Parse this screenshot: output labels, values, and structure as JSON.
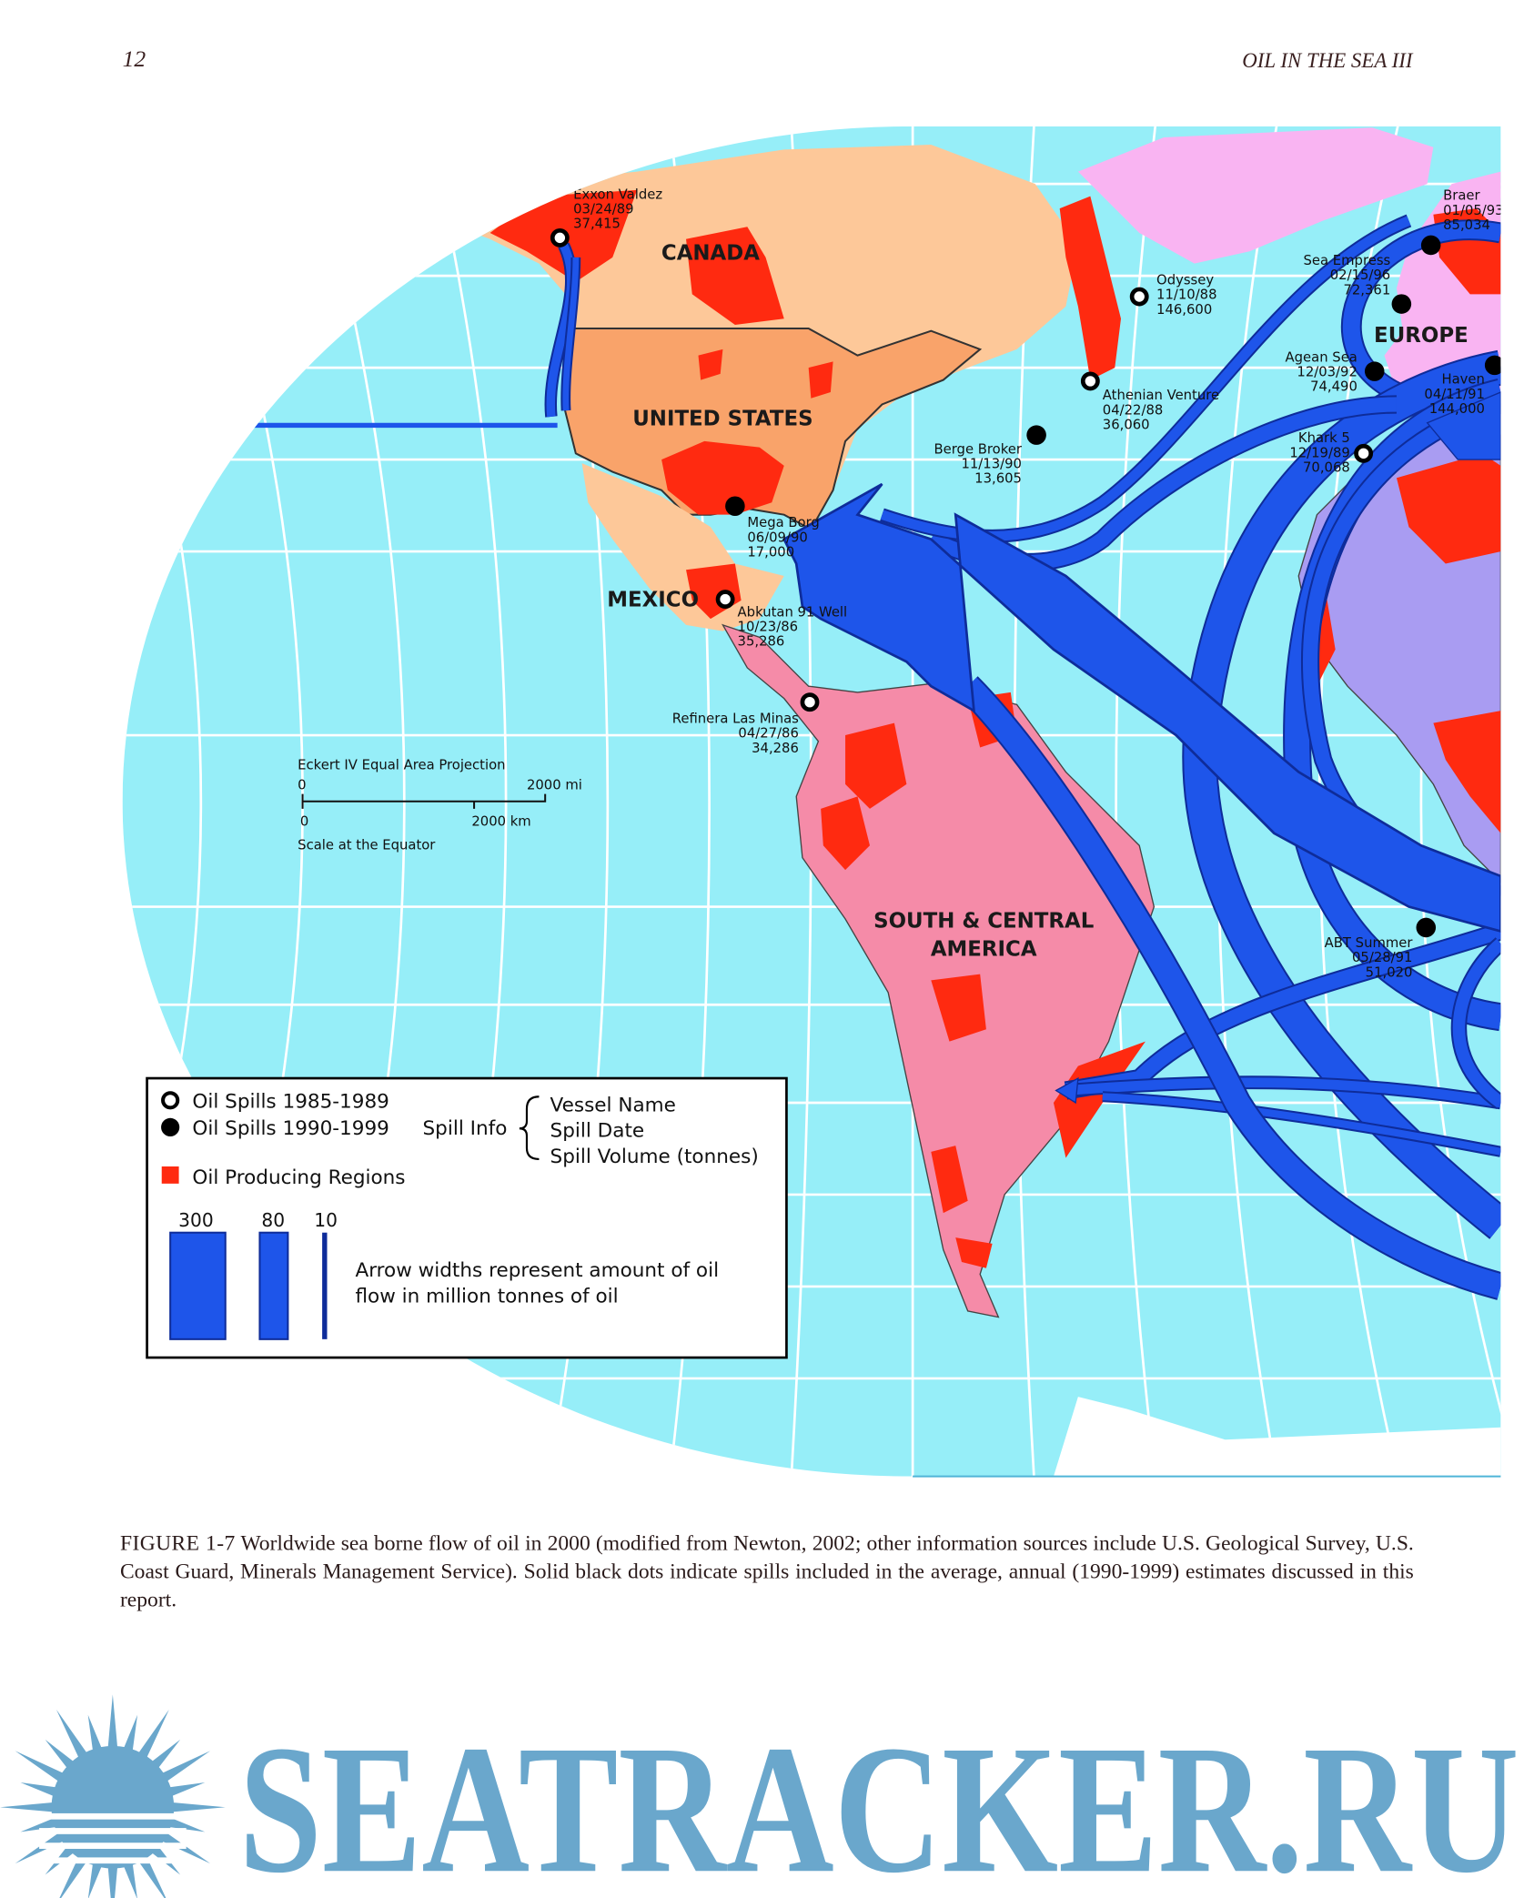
{
  "header": {
    "page_number": "12",
    "running_title": "OIL IN THE SEA III"
  },
  "map": {
    "regions": {
      "canada": "CANADA",
      "united_states": "UNITED STATES",
      "mexico": "MEXICO",
      "europe": "EUROPE",
      "south_america_line1": "SOUTH & CENTRAL",
      "south_america_line2": "AMERICA"
    },
    "colors": {
      "ocean": "#96eef8",
      "canada": "#fdc899",
      "united_states": "#f9a36a",
      "south_central_america": "#f58ba8",
      "africa": "#a99cf2",
      "europe_greenland": "#f9b4f2",
      "oil_producing": "#ff2a10",
      "flow_arrow": "#1e55ea",
      "flow_outline": "#0e2c9a"
    },
    "spills": [
      {
        "vessel": "Exxon Valdez",
        "date": "03/24/89",
        "volume": "37,415",
        "period": "1985-1989"
      },
      {
        "vessel": "Odyssey",
        "date": "11/10/88",
        "volume": "146,600",
        "period": "1985-1989"
      },
      {
        "vessel": "Athenian Venture",
        "date": "04/22/88",
        "volume": "36,060",
        "period": "1985-1989"
      },
      {
        "vessel": "Berge Broker",
        "date": "11/13/90",
        "volume": "13,605",
        "period": "1990-1999"
      },
      {
        "vessel": "Mega Borg",
        "date": "06/09/90",
        "volume": "17,000",
        "period": "1990-1999"
      },
      {
        "vessel": "Abkutan 91 Well",
        "date": "10/23/86",
        "volume": "35,286",
        "period": "1985-1989"
      },
      {
        "vessel": "Refinera Las Minas",
        "date": "04/27/86",
        "volume": "34,286",
        "period": "1985-1989"
      },
      {
        "vessel": "Braer",
        "date": "01/05/93",
        "volume": "85,034",
        "period": "1990-1999"
      },
      {
        "vessel": "Sea Empress",
        "date": "02/15/96",
        "volume": "72,361",
        "period": "1990-1999"
      },
      {
        "vessel": "Agean Sea",
        "date": "12/03/92",
        "volume": "74,490",
        "period": "1990-1999"
      },
      {
        "vessel": "Haven",
        "date": "04/11/91",
        "volume": "144,000",
        "period": "1990-1999"
      },
      {
        "vessel": "Khark 5",
        "date": "12/19/89",
        "volume": "70,068",
        "period": "1985-1989"
      },
      {
        "vessel": "ABT Summer",
        "date": "05/28/91",
        "volume": "51,020",
        "period": "1990-1999"
      }
    ],
    "scale": {
      "projection": "Eckert IV Equal Area Projection",
      "mi_start": "0",
      "mi_end": "2000 mi",
      "km_start": "0",
      "km_end": "2000 km",
      "note": "Scale at the Equator"
    }
  },
  "legend": {
    "open_dot": "Oil Spills 1985-1989",
    "filled_dot": "Oil Spills 1990-1999",
    "spill_info_label": "Spill Info",
    "spill_info_items": [
      "Vessel Name",
      "Spill Date",
      "Spill Volume (tonnes)"
    ],
    "oil_regions": "Oil Producing Regions",
    "arrow_widths": [
      "300",
      "80",
      "10"
    ],
    "arrow_note_line1": "Arrow widths represent amount of oil",
    "arrow_note_line2": "flow in million tonnes of oil"
  },
  "caption": {
    "label": "FIGURE 1-7",
    "text": "Worldwide sea borne flow of oil in 2000 (modified from Newton, 2002; other information sources include U.S. Geological Survey, U.S. Coast Guard, Minerals Management Service). Solid black dots indicate spills included in the average, annual (1990-1999) estimates discussed in this report."
  },
  "watermark": {
    "text": "SEATRACKER.RU",
    "color": "#6aa7cc"
  }
}
